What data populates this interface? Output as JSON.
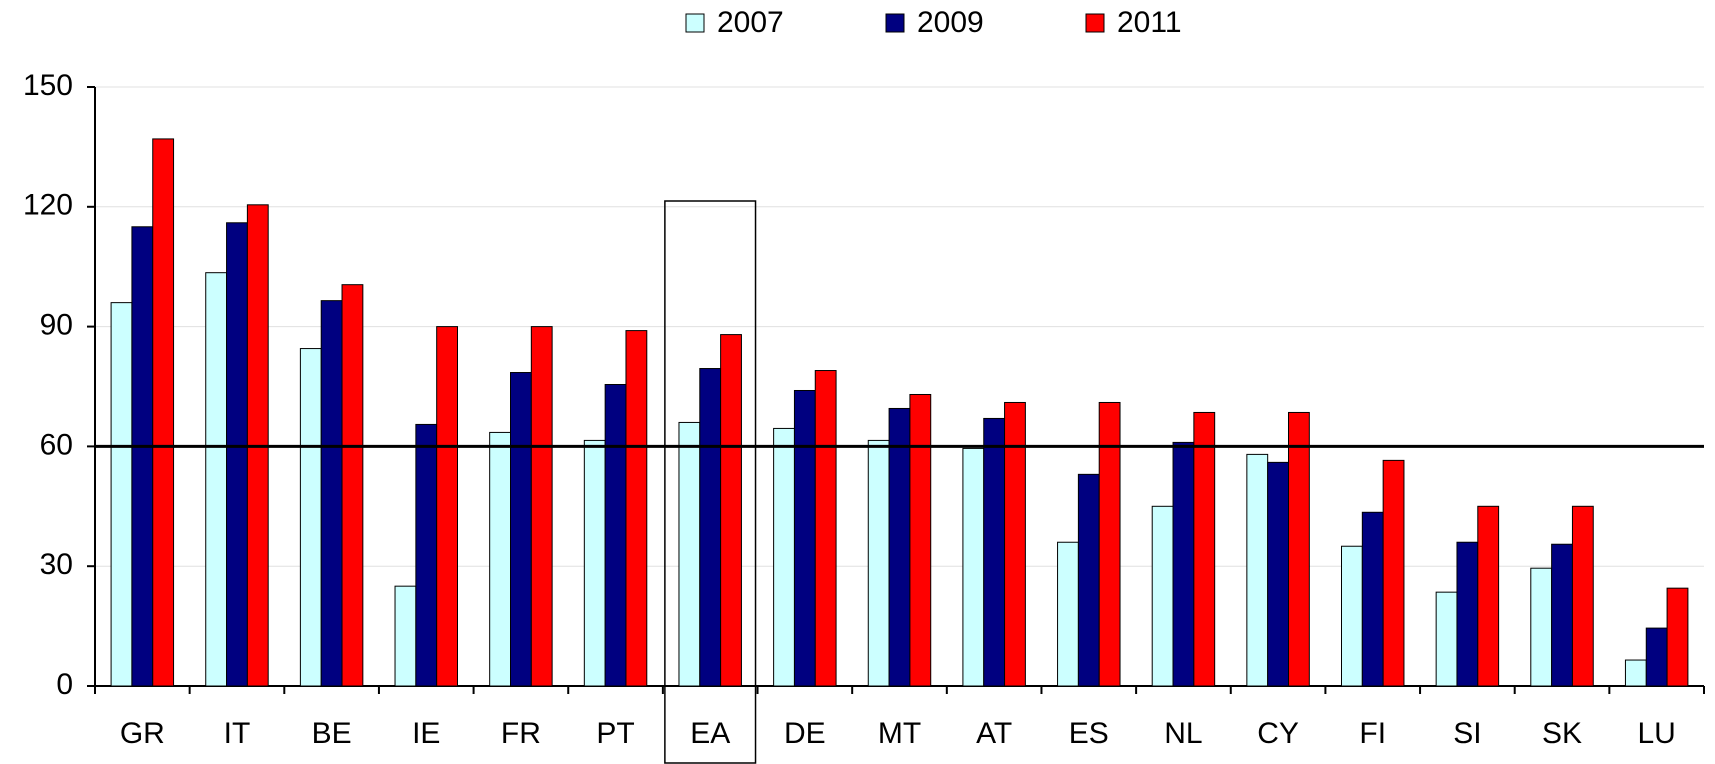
{
  "chart_data": {
    "type": "bar",
    "categories": [
      "GR",
      "IT",
      "BE",
      "IE",
      "FR",
      "PT",
      "EA",
      "DE",
      "MT",
      "AT",
      "ES",
      "NL",
      "CY",
      "FI",
      "SI",
      "SK",
      "LU"
    ],
    "series": [
      {
        "name": "2007",
        "color": "#ccffff",
        "values": [
          96,
          103.5,
          84.5,
          25,
          63.5,
          61.5,
          66,
          64.5,
          61.5,
          59.5,
          36,
          45,
          58,
          35,
          23.5,
          29.5,
          6.5
        ]
      },
      {
        "name": "2009",
        "color": "#000080",
        "values": [
          115,
          116,
          96.5,
          65.5,
          78.5,
          75.5,
          79.5,
          74,
          69.5,
          67,
          53,
          61,
          56,
          43.5,
          36,
          35.5,
          14.5
        ]
      },
      {
        "name": "2011",
        "color": "#ff0000",
        "values": [
          137,
          120.5,
          100.5,
          90,
          90,
          89,
          88,
          79,
          73,
          71,
          71,
          68.5,
          68.5,
          56.5,
          45,
          45,
          24.5
        ]
      }
    ],
    "ylim": [
      0,
      150
    ],
    "yticks": [
      0,
      30,
      60,
      90,
      120,
      150
    ],
    "grid": true,
    "reference_line": 60,
    "legend": "top"
  }
}
